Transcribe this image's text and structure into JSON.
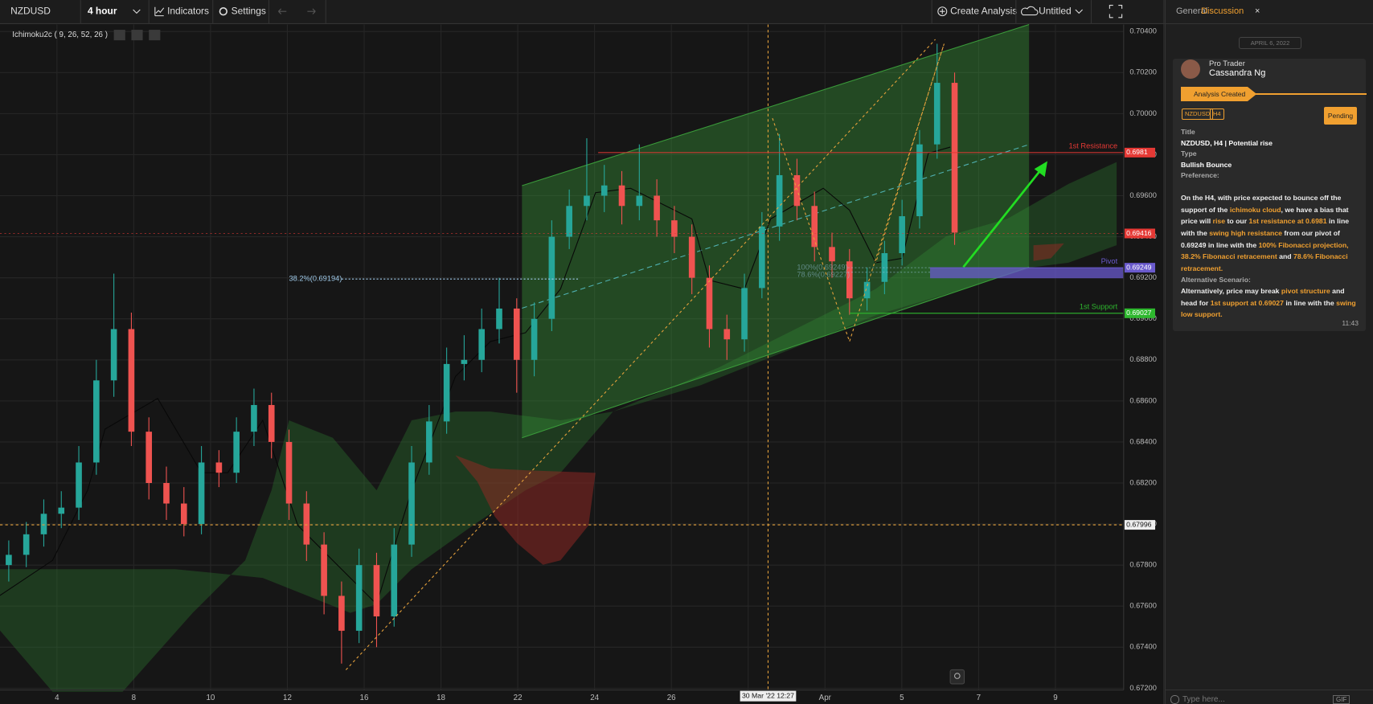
{
  "toolbar": {
    "symbol": "NZDUSD",
    "interval": "4 hour",
    "indicators": "Indicators",
    "settings": "Settings",
    "create_analysis": "Create Analysis",
    "layout": "Untitled"
  },
  "indicator_label": "Ichimoku2c ( 9, 26, 52, 26 )",
  "chart_data": {
    "type": "candlestick",
    "up_color": "#26a69a",
    "down_color": "#ef5350",
    "grid": true,
    "ylim": [
      0.672,
      0.70434
    ],
    "yticks": [
      {
        "value": 0.672,
        "label": "0.67200"
      },
      {
        "value": 0.674,
        "label": "0.67400"
      },
      {
        "value": 0.676,
        "label": "0.67600"
      },
      {
        "value": 0.678,
        "label": "0.67800"
      },
      {
        "value": 0.68,
        "label": "0.68000"
      },
      {
        "value": 0.682,
        "label": "0.68200"
      },
      {
        "value": 0.684,
        "label": "0.68400"
      },
      {
        "value": 0.686,
        "label": "0.68600"
      },
      {
        "value": 0.688,
        "label": "0.68800"
      },
      {
        "value": 0.69,
        "label": "0.69000"
      },
      {
        "value": 0.692,
        "label": "0.69200"
      },
      {
        "value": 0.694,
        "label": "0.69400"
      },
      {
        "value": 0.696,
        "label": "0.69600"
      },
      {
        "value": 0.698,
        "label": "0.69800"
      },
      {
        "value": 0.7,
        "label": "0.70000"
      },
      {
        "value": 0.702,
        "label": "0.70200"
      },
      {
        "value": 0.704,
        "label": "0.70400"
      }
    ],
    "categories": [
      "4",
      "8",
      "10",
      "12",
      "16",
      "18",
      "22",
      "24",
      "26",
      null,
      "Apr",
      "5",
      "7",
      "9"
    ],
    "candles": [
      [
        0.678,
        0.6792,
        0.6772,
        0.6785
      ],
      [
        0.6785,
        0.6801,
        0.6779,
        0.6795
      ],
      [
        0.6795,
        0.6812,
        0.6789,
        0.6805
      ],
      [
        0.6805,
        0.6816,
        0.6798,
        0.6808
      ],
      [
        0.6808,
        0.6838,
        0.6802,
        0.683
      ],
      [
        0.683,
        0.688,
        0.6824,
        0.687
      ],
      [
        0.687,
        0.6922,
        0.6862,
        0.6895
      ],
      [
        0.6895,
        0.6903,
        0.6838,
        0.6845
      ],
      [
        0.6845,
        0.6852,
        0.6812,
        0.682
      ],
      [
        0.682,
        0.6828,
        0.6802,
        0.681
      ],
      [
        0.681,
        0.6818,
        0.6794,
        0.68
      ],
      [
        0.68,
        0.6838,
        0.6795,
        0.683
      ],
      [
        0.683,
        0.6836,
        0.6818,
        0.6825
      ],
      [
        0.6825,
        0.6852,
        0.682,
        0.6845
      ],
      [
        0.6845,
        0.6866,
        0.6838,
        0.6858
      ],
      [
        0.6858,
        0.6864,
        0.6832,
        0.684
      ],
      [
        0.684,
        0.6846,
        0.6802,
        0.681
      ],
      [
        0.681,
        0.6816,
        0.6782,
        0.679
      ],
      [
        0.679,
        0.6796,
        0.6756,
        0.6765
      ],
      [
        0.6765,
        0.6772,
        0.6732,
        0.6748
      ],
      [
        0.6748,
        0.6788,
        0.6742,
        0.678
      ],
      [
        0.678,
        0.6786,
        0.674,
        0.6755
      ],
      [
        0.6755,
        0.6798,
        0.675,
        0.679
      ],
      [
        0.679,
        0.6838,
        0.6784,
        0.683
      ],
      [
        0.683,
        0.6858,
        0.6824,
        0.685
      ],
      [
        0.685,
        0.6886,
        0.6844,
        0.6878
      ],
      [
        0.6878,
        0.6892,
        0.687,
        0.688
      ],
      [
        0.688,
        0.6905,
        0.6874,
        0.6895
      ],
      [
        0.6895,
        0.692,
        0.6888,
        0.6905
      ],
      [
        0.6905,
        0.691,
        0.6864,
        0.688
      ],
      [
        0.688,
        0.6908,
        0.6872,
        0.69
      ],
      [
        0.69,
        0.6948,
        0.6894,
        0.694
      ],
      [
        0.694,
        0.6963,
        0.6934,
        0.6955
      ],
      [
        0.6955,
        0.6988,
        0.6948,
        0.696
      ],
      [
        0.696,
        0.6975,
        0.6952,
        0.6965
      ],
      [
        0.6965,
        0.6972,
        0.6946,
        0.6955
      ],
      [
        0.6955,
        0.6985,
        0.6948,
        0.696
      ],
      [
        0.696,
        0.6968,
        0.694,
        0.6948
      ],
      [
        0.6948,
        0.6955,
        0.6932,
        0.694
      ],
      [
        0.694,
        0.6946,
        0.6912,
        0.692
      ],
      [
        0.692,
        0.6926,
        0.6886,
        0.6895
      ],
      [
        0.6895,
        0.6902,
        0.688,
        0.689
      ],
      [
        0.689,
        0.6922,
        0.6884,
        0.6915
      ],
      [
        0.6915,
        0.6952,
        0.691,
        0.6945
      ],
      [
        0.6945,
        0.699,
        0.6938,
        0.697
      ],
      [
        0.697,
        0.6978,
        0.6948,
        0.6955
      ],
      [
        0.6955,
        0.6962,
        0.6928,
        0.6935
      ],
      [
        0.6935,
        0.6942,
        0.692,
        0.6928
      ],
      [
        0.6928,
        0.6934,
        0.6902,
        0.691
      ],
      [
        0.691,
        0.6925,
        0.6904,
        0.6918
      ],
      [
        0.6918,
        0.6938,
        0.6912,
        0.6932
      ],
      [
        0.6932,
        0.6958,
        0.6926,
        0.695
      ],
      [
        0.695,
        0.6992,
        0.6944,
        0.6985
      ],
      [
        0.6985,
        0.7034,
        0.6978,
        0.7015
      ],
      [
        0.7015,
        0.702,
        0.6936,
        0.6942
      ]
    ],
    "levels": [
      {
        "name": "1st Resistance",
        "value": 0.6981,
        "color": "#e53935"
      },
      {
        "value": 0.69416,
        "color": "#e53935"
      },
      {
        "name": "Pivot",
        "value": 0.69249,
        "color": "#6a5acd"
      },
      {
        "name": "1st Support",
        "value": 0.69027,
        "color": "#2eb82e"
      }
    ],
    "fibs": [
      {
        "label": "38.2%(0.69194)",
        "value": 0.69194
      },
      {
        "label": "100%(0.69249)",
        "value": 0.69249
      },
      {
        "label": "78.6%(0.69227)",
        "value": 0.69227
      }
    ],
    "crosshair": {
      "value": 0.67996,
      "time_label": "30 Mar '22 12:27",
      "color": "#e6a23c"
    }
  },
  "panel": {
    "tabs": [
      "General",
      "Discussion"
    ],
    "close": "×",
    "date": "APRIL 6, 2022",
    "author_role": "Pro Trader",
    "author_name": "Cassandra Ng",
    "status_banner": "Analysis Created",
    "tags": [
      "NZDUSD",
      "H4"
    ],
    "status": "Pending",
    "fields": [
      {
        "label": "Title",
        "value": "NZDUSD, H4 | Potential rise"
      },
      {
        "label": "Type",
        "value": "Bullish Bounce"
      }
    ],
    "preference_label": "Preference:",
    "preference": [
      {
        "text": "On the H4, with price expected to bounce off the support of the ",
        "highlight": false
      },
      {
        "text": "ichimoku cloud",
        "highlight": true
      },
      {
        "text": ", we have a bias that price will ",
        "highlight": false
      },
      {
        "text": "rise",
        "highlight": true
      },
      {
        "text": " to our ",
        "highlight": false
      },
      {
        "text": "1st resistance at 0.6981",
        "highlight": true
      },
      {
        "text": " in line with the ",
        "highlight": false
      },
      {
        "text": "swing high resistance",
        "highlight": true
      },
      {
        "text": " from our pivot of 0.69249 in line with the ",
        "highlight": false
      },
      {
        "text": "100% Fibonacci projection, 38.2% Fibonacci retracement",
        "highlight": true
      },
      {
        "text": " and ",
        "highlight": false
      },
      {
        "text": "78.6% Fibonacci retracement.",
        "highlight": true
      }
    ],
    "alternative_label": "Alternative Scenario:",
    "alternative": [
      {
        "text": "Alternatively, price may break ",
        "highlight": false
      },
      {
        "text": "pivot structure",
        "highlight": true
      },
      {
        "text": " and head for ",
        "highlight": false
      },
      {
        "text": "1st support at 0.69027",
        "highlight": true
      },
      {
        "text": " in line with the ",
        "highlight": false
      },
      {
        "text": "swing low support.",
        "highlight": true
      }
    ],
    "time": "11:43",
    "input_placeholder": "Type here...",
    "gif": "GIF"
  }
}
